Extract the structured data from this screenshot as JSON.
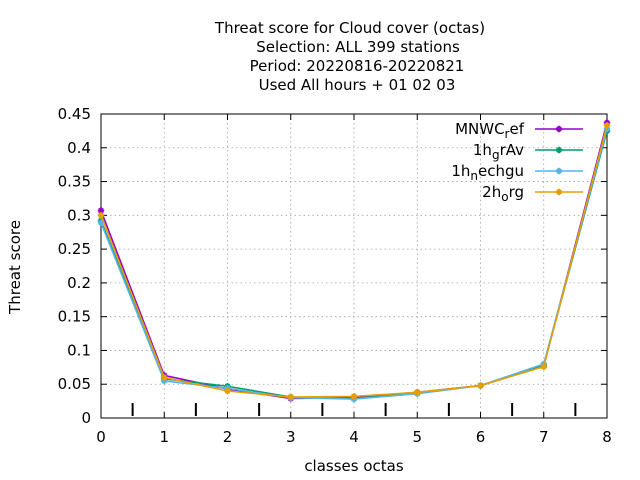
{
  "chart_data": {
    "type": "line",
    "title_lines": [
      "Threat score  for Cloud cover (octas)",
      "Selection: ALL     399 stations",
      "Period: 20220816-20220821",
      "Used  All hours  + 01 02 03"
    ],
    "xlabel": "classes octas",
    "ylabel": "Threat score",
    "x": [
      0,
      1,
      2,
      3,
      4,
      5,
      6,
      7,
      8
    ],
    "xlim": [
      0,
      8
    ],
    "ylim": [
      0,
      0.45
    ],
    "x_ticks": [
      "0",
      "1",
      "2",
      "3",
      "4",
      "5",
      "6",
      "7",
      "8"
    ],
    "y_ticks": [
      "0",
      "0.05",
      "0.1",
      "0.15",
      "0.2",
      "0.25",
      "0.3",
      "0.35",
      "0.4",
      "0.45"
    ],
    "grid": true,
    "legend_position": "top-right",
    "series": [
      {
        "name": "MNWC_ref",
        "legend": {
          "base": "MNWC",
          "sub": "r",
          "rest": "ef"
        },
        "color": "#9400d3",
        "values": [
          0.307,
          0.063,
          0.043,
          0.029,
          0.03,
          0.038,
          0.048,
          0.077,
          0.437
        ]
      },
      {
        "name": "1h_grAv",
        "legend": {
          "base": "1h",
          "sub": "g",
          "rest": "rAv"
        },
        "color": "#009e73",
        "values": [
          0.292,
          0.058,
          0.047,
          0.031,
          0.029,
          0.037,
          0.048,
          0.078,
          0.425
        ]
      },
      {
        "name": "1h_nechgu",
        "legend": {
          "base": "1h",
          "sub": "n",
          "rest": "echgu"
        },
        "color": "#56b4e9",
        "values": [
          0.289,
          0.055,
          0.044,
          0.03,
          0.028,
          0.036,
          0.048,
          0.08,
          0.428
        ]
      },
      {
        "name": "2h_org",
        "legend": {
          "base": "2h",
          "sub": "o",
          "rest": "rg"
        },
        "color": "#e69f00",
        "values": [
          0.3,
          0.06,
          0.04,
          0.031,
          0.032,
          0.038,
          0.048,
          0.076,
          0.433
        ]
      }
    ],
    "class_separators": [
      0.5,
      1.5,
      2.5,
      3.5,
      4.5,
      5.5,
      6.5,
      7.5
    ]
  }
}
